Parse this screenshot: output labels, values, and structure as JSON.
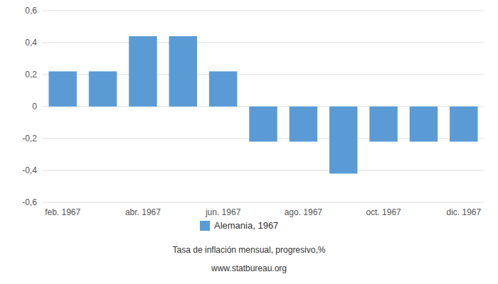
{
  "chart_data": {
    "type": "bar",
    "subtitle": "Tasa de inflación mensual, progresivo,%",
    "annotations": [
      "www.statbureau.org"
    ],
    "categories": [
      "feb. 1967",
      null,
      "abr. 1967",
      null,
      "jun. 1967",
      null,
      "ago. 1967",
      null,
      "oct. 1967",
      null,
      "dic. 1967"
    ],
    "series": [
      {
        "name": "Alemania, 1967",
        "color": "#5b9bd5",
        "values": [
          0.22,
          0.22,
          0.44,
          0.44,
          0.22,
          -0.22,
          -0.22,
          -0.42,
          -0.22,
          -0.22,
          -0.22
        ]
      }
    ],
    "ylim": [
      -0.6,
      0.6
    ],
    "yticks": [
      {
        "value": -0.6,
        "label": "-0,6"
      },
      {
        "value": -0.4,
        "label": "-0,4"
      },
      {
        "value": -0.2,
        "label": "-0,2"
      },
      0,
      {
        "value": 0.2,
        "label": "0,2"
      },
      {
        "value": 0.4,
        "label": "0,4"
      },
      {
        "value": 0.6,
        "label": "0,6"
      }
    ],
    "grid": true,
    "legend": "bottom"
  }
}
